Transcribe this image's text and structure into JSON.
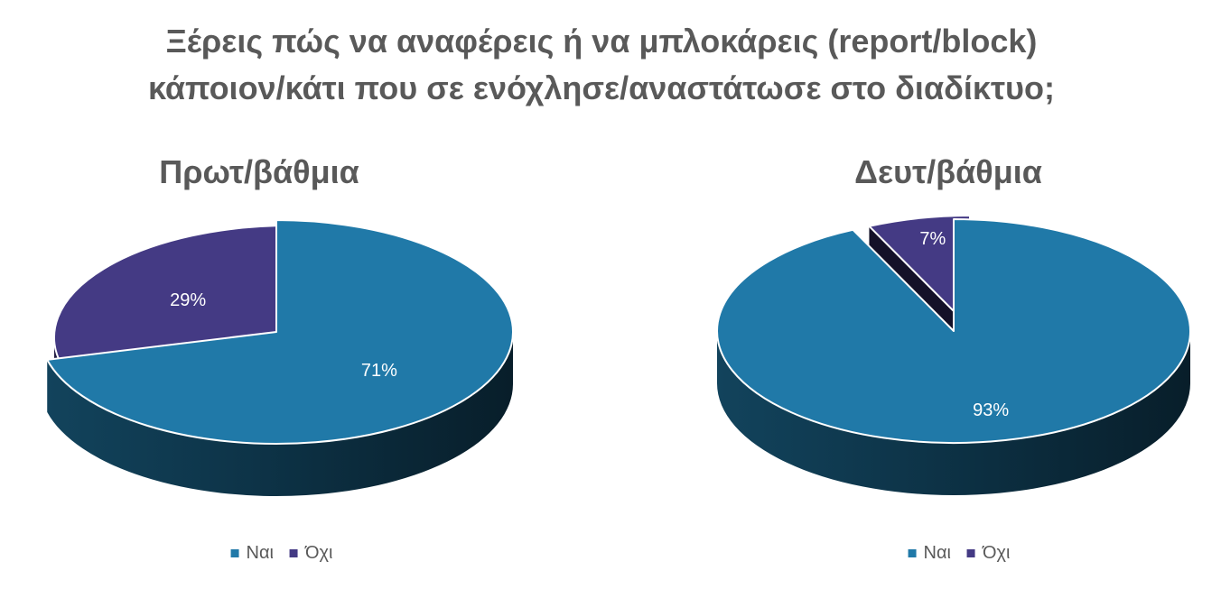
{
  "title_lines": [
    "Ξέρεις πώς να αναφέρεις ή να μπλοκάρεις (report/block)",
    "κάποιον/κάτι που σε ενόχλησε/αναστάτωσε στο διαδίκτυο;"
  ],
  "colors": {
    "nai": "#2079a8",
    "ochi": "#443a84",
    "title": "#595959"
  },
  "chart_data": [
    {
      "type": "pie",
      "title": "Πρωτ/βάθμια",
      "categories": [
        "Ναι",
        "Όχι"
      ],
      "values": [
        71,
        29
      ],
      "labels": [
        "71%",
        "29%"
      ],
      "legend": "bottom"
    },
    {
      "type": "pie",
      "title": "Δευτ/βάθμια",
      "categories": [
        "Ναι",
        "Όχι"
      ],
      "values": [
        93,
        7
      ],
      "labels": [
        "93%",
        "7%"
      ],
      "legend": "bottom"
    }
  ]
}
